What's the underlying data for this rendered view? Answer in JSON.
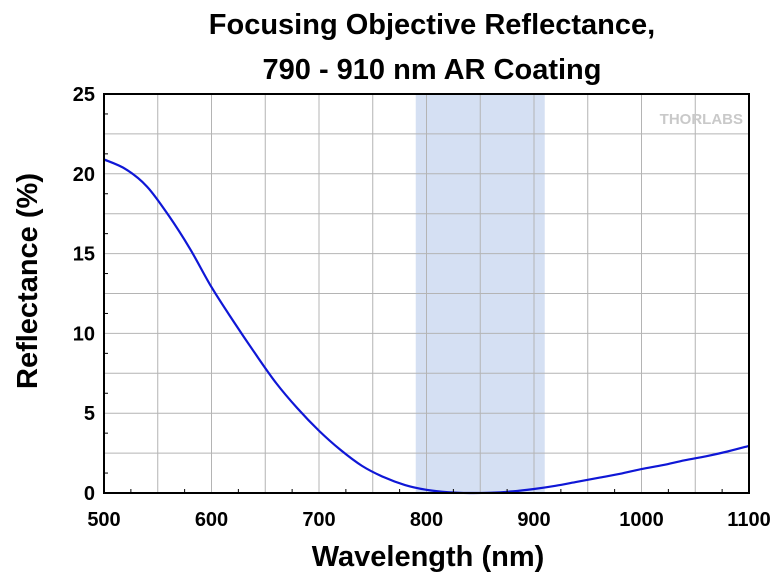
{
  "chart_data": {
    "type": "line",
    "title_line1": "Focusing Objective Reflectance,",
    "title_line2": "790 - 910 nm AR Coating",
    "xlabel": "Wavelength (nm)",
    "ylabel": "Reflectance (%)",
    "xlim": [
      500,
      1100
    ],
    "ylim": [
      0,
      25
    ],
    "xticks": [
      "500",
      "600",
      "700",
      "800",
      "900",
      "1000",
      "1100"
    ],
    "yticks": [
      "0",
      "5",
      "10",
      "15",
      "20",
      "25"
    ],
    "grid": true,
    "highlight_band": {
      "from": 790,
      "to": 910,
      "color": "#d5e0f3"
    },
    "series": [
      {
        "color": "#0f17d6",
        "x": [
          500,
          520,
          540,
          560,
          580,
          600,
          620,
          640,
          660,
          680,
          700,
          720,
          740,
          760,
          780,
          800,
          820,
          840,
          860,
          880,
          900,
          920,
          940,
          960,
          980,
          1000,
          1020,
          1040,
          1060,
          1080,
          1100
        ],
        "y": [
          20.9,
          20.3,
          19.2,
          17.4,
          15.3,
          12.9,
          10.8,
          8.8,
          6.9,
          5.3,
          3.9,
          2.7,
          1.7,
          1.0,
          0.5,
          0.2,
          0.05,
          0.0,
          0.02,
          0.1,
          0.25,
          0.45,
          0.7,
          0.95,
          1.2,
          1.5,
          1.75,
          2.05,
          2.3,
          2.6,
          2.95
        ]
      }
    ]
  },
  "logo": {
    "text": "THORLABS"
  }
}
